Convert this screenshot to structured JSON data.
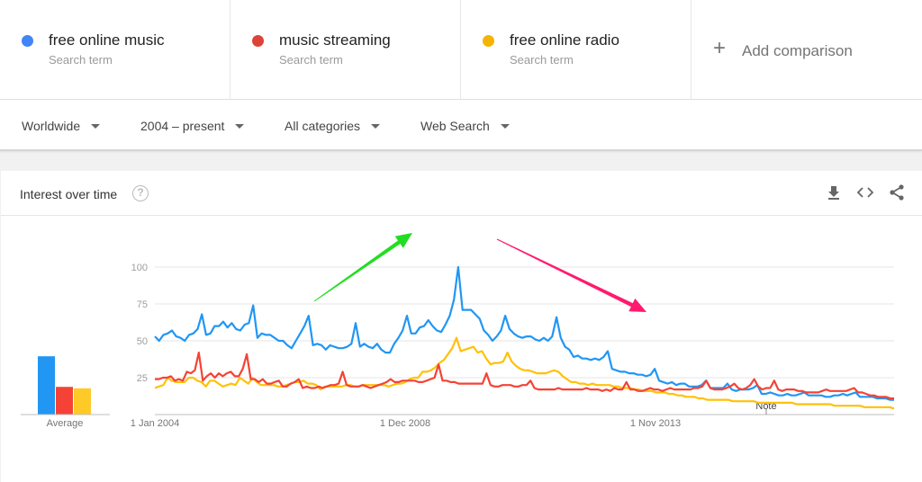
{
  "terms": [
    {
      "name": "free online music",
      "sub": "Search term",
      "color": "#4285f4"
    },
    {
      "name": "music streaming",
      "sub": "Search term",
      "color": "#db4437"
    },
    {
      "name": "free online radio",
      "sub": "Search term",
      "color": "#f4b400"
    }
  ],
  "add_comparison": {
    "icon": "plus-icon",
    "label": "Add comparison"
  },
  "filters": [
    {
      "label": "Worldwide",
      "x": 24
    },
    {
      "label": "2004 – present",
      "x": 156
    },
    {
      "label": "All categories",
      "x": 316
    },
    {
      "label": "Web Search",
      "x": 467
    }
  ],
  "card": {
    "title": "Interest over time",
    "help_icon": "?",
    "actions": [
      "download-icon",
      "embed-icon",
      "share-icon"
    ]
  },
  "average": {
    "label": "Average",
    "values": [
      40,
      19,
      18
    ],
    "colors": [
      "#2196f3",
      "#f44336",
      "#ffca28"
    ]
  },
  "annotation": {
    "note_label": "Note",
    "arrow_up_color": "#22dd22",
    "arrow_down_color": "#ff1a6e"
  },
  "chart_data": {
    "type": "line",
    "title": "Interest over time",
    "xlabel": "",
    "ylabel": "",
    "ylim": [
      0,
      100
    ],
    "yticks": [
      25,
      50,
      75,
      100
    ],
    "xticks": [
      "1 Jan 2004",
      "1 Dec 2008",
      "1 Nov 2013"
    ],
    "grid": true,
    "legend_position": "top",
    "x_start": "Jan 2004",
    "x_step": "1 month",
    "series": [
      {
        "name": "free online music",
        "color": "#2196f3",
        "values": [
          53,
          50,
          54,
          55,
          57,
          53,
          52,
          50,
          54,
          55,
          58,
          68,
          54,
          55,
          60,
          60,
          63,
          59,
          62,
          58,
          57,
          61,
          62,
          74,
          52,
          55,
          54,
          54,
          52,
          50,
          50,
          47,
          45,
          50,
          55,
          60,
          67,
          47,
          48,
          47,
          44,
          47,
          46,
          45,
          45,
          46,
          48,
          62,
          46,
          48,
          46,
          45,
          48,
          44,
          42,
          42,
          48,
          52,
          57,
          67,
          55,
          55,
          59,
          60,
          64,
          60,
          57,
          56,
          61,
          67,
          78,
          100,
          71,
          71,
          71,
          68,
          65,
          57,
          54,
          50,
          53,
          57,
          67,
          58,
          55,
          53,
          52,
          53,
          53,
          51,
          50,
          52,
          50,
          53,
          66,
          52,
          46,
          44,
          39,
          40,
          38,
          38,
          37,
          38,
          37,
          39,
          43,
          31,
          30,
          29,
          29,
          28,
          28,
          27,
          27,
          26,
          27,
          31,
          23,
          22,
          21,
          22,
          20,
          21,
          21,
          19,
          19,
          19,
          20,
          23,
          18,
          18,
          18,
          18,
          21,
          17,
          16,
          17,
          17,
          17,
          18,
          20,
          14,
          14,
          15,
          14,
          13,
          13,
          14,
          13,
          13,
          14,
          15,
          13,
          13,
          13,
          13,
          12,
          12,
          13,
          13,
          14,
          13,
          14,
          15,
          12,
          12,
          12,
          12,
          11,
          11,
          11,
          10,
          10
        ]
      },
      {
        "name": "music streaming",
        "color": "#f44336",
        "values": [
          24,
          24,
          25,
          25,
          26,
          23,
          24,
          23,
          29,
          28,
          30,
          42,
          23,
          26,
          28,
          25,
          28,
          26,
          28,
          29,
          26,
          26,
          31,
          41,
          24,
          24,
          22,
          24,
          21,
          21,
          22,
          23,
          19,
          19,
          21,
          22,
          24,
          18,
          19,
          18,
          18,
          19,
          18,
          19,
          20,
          20,
          21,
          29,
          20,
          19,
          19,
          19,
          20,
          19,
          18,
          19,
          20,
          21,
          22,
          24,
          22,
          22,
          23,
          23,
          23,
          23,
          22,
          22,
          23,
          24,
          25,
          34,
          23,
          23,
          22,
          22,
          21,
          21,
          21,
          21,
          21,
          21,
          21,
          28,
          20,
          19,
          19,
          20,
          20,
          20,
          19,
          19,
          20,
          20,
          23,
          18,
          17,
          17,
          17,
          17,
          17,
          18,
          17,
          17,
          17,
          17,
          17,
          17,
          18,
          17,
          17,
          17,
          16,
          17,
          16,
          18,
          17,
          17,
          22,
          17,
          17,
          16,
          16,
          17,
          18,
          17,
          17,
          16,
          17,
          18,
          17,
          17,
          17,
          17,
          17,
          18,
          18,
          19,
          23,
          18,
          17,
          17,
          17,
          18,
          19,
          21,
          18,
          17,
          18,
          20,
          24,
          19,
          17,
          18,
          18,
          23,
          17,
          16,
          17,
          17,
          17,
          16,
          16,
          15,
          15,
          15,
          15,
          16,
          17,
          16,
          16,
          16,
          16,
          16,
          17,
          18,
          15,
          15,
          14,
          13,
          13,
          12,
          12,
          12,
          11,
          11
        ]
      },
      {
        "name": "free online radio",
        "color": "#ffc107",
        "values": [
          18,
          19,
          20,
          25,
          23,
          22,
          22,
          22,
          25,
          25,
          23,
          22,
          19,
          23,
          23,
          21,
          19,
          20,
          21,
          20,
          25,
          23,
          21,
          25,
          22,
          20,
          20,
          20,
          20,
          19,
          19,
          20,
          21,
          22,
          22,
          23,
          21,
          21,
          20,
          17,
          19,
          19,
          19,
          19,
          19,
          20,
          20,
          19,
          19,
          20,
          20,
          20,
          20,
          20,
          20,
          19,
          20,
          21,
          21,
          22,
          24,
          25,
          25,
          29,
          29,
          30,
          32,
          35,
          37,
          41,
          45,
          52,
          43,
          44,
          45,
          46,
          42,
          43,
          38,
          34,
          35,
          35,
          36,
          42,
          36,
          33,
          31,
          30,
          30,
          29,
          28,
          28,
          28,
          29,
          30,
          29,
          26,
          24,
          22,
          22,
          21,
          21,
          20,
          21,
          20,
          20,
          20,
          20,
          19,
          19,
          18,
          18,
          18,
          17,
          17,
          16,
          16,
          16,
          15,
          15,
          15,
          14,
          14,
          13,
          13,
          12,
          12,
          12,
          11,
          11,
          10,
          10,
          10,
          10,
          10,
          10,
          9,
          9,
          9,
          9,
          9,
          9,
          8,
          8,
          8,
          8,
          8,
          8,
          8,
          8,
          8,
          7,
          7,
          7,
          7,
          7,
          7,
          7,
          7,
          7,
          6,
          6,
          6,
          6,
          6,
          6,
          6,
          5,
          5,
          5,
          5,
          5,
          5,
          5,
          4
        ]
      }
    ]
  }
}
